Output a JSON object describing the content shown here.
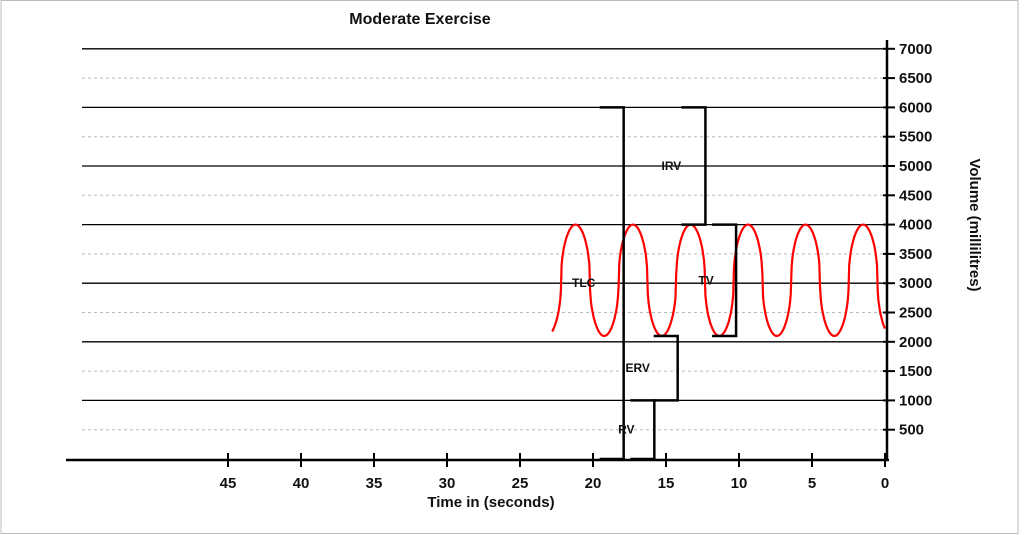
{
  "chart_data": {
    "type": "line",
    "title": "Moderate Exercise",
    "xlabel": "Time in (seconds)",
    "ylabel": "Volume (millilitres)",
    "xlim": [
      50,
      0
    ],
    "x_reversed": true,
    "ylim": [
      0,
      7000
    ],
    "x_ticks": [
      45,
      40,
      35,
      30,
      25,
      20,
      15,
      10,
      5,
      0
    ],
    "y_ticks": [
      500,
      1000,
      1500,
      2000,
      2500,
      3000,
      3500,
      4000,
      4500,
      5000,
      5500,
      6000,
      6500,
      7000
    ],
    "grid": {
      "major_solid_every": 1000,
      "minor_dashed_every": 500
    },
    "series": [
      {
        "color": "#ff0000",
        "waveform": {
          "start_time": 22.8,
          "end_time": 0,
          "peak": 4000,
          "trough": 2100,
          "peak_times": [
            21.2,
            17.3,
            13.4,
            9.4,
            5.4,
            1.5
          ]
        }
      }
    ],
    "annotations": [
      {
        "label": "TLC",
        "time": 17.9,
        "from": 0,
        "to": 6000
      },
      {
        "label": "IRV",
        "time": 12.3,
        "from": 4000,
        "to": 6000
      },
      {
        "label": "TV",
        "time": 10.2,
        "from": 2100,
        "to": 4000
      },
      {
        "label": "ERV",
        "time": 14.2,
        "from": 2100,
        "to": 1000
      },
      {
        "label": "RV",
        "time": 15.8,
        "from": 0,
        "to": 1000
      }
    ]
  }
}
